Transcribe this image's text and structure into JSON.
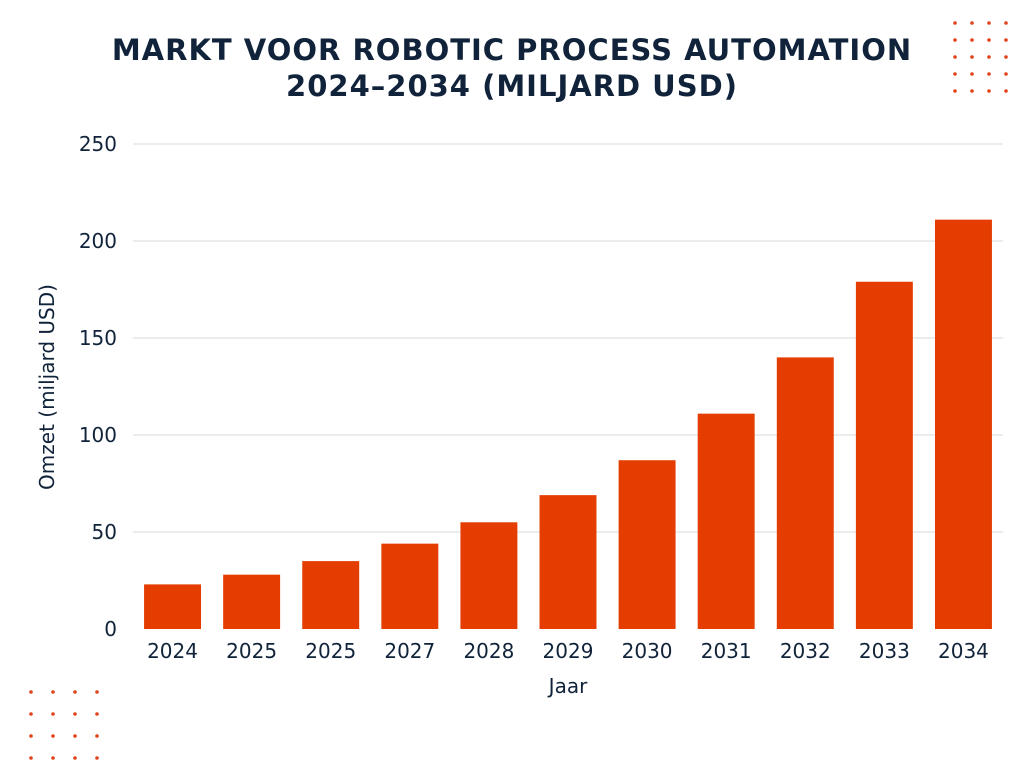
{
  "chart_data": {
    "type": "bar",
    "title_lines": [
      "MARKT VOOR ROBOTIC PROCESS AUTOMATION",
      "2024–2034 (MILJARD USD)"
    ],
    "xlabel": "Jaar",
    "ylabel": "Omzet (miljard USD)",
    "categories": [
      "2024",
      "2025",
      "2025",
      "2027",
      "2028",
      "2029",
      "2030",
      "2031",
      "2032",
      "2033",
      "2034"
    ],
    "values": [
      23,
      28,
      35,
      44,
      55,
      69,
      87,
      111,
      140,
      179,
      211
    ],
    "ylim": [
      0,
      250
    ],
    "yticks": [
      0,
      50,
      100,
      150,
      200,
      250
    ],
    "grid": true,
    "legend": false
  },
  "colors": {
    "bar": "#e53d00",
    "text": "#10233a",
    "grid": "#d9d9d9",
    "decor_dots": "#e0421b"
  }
}
